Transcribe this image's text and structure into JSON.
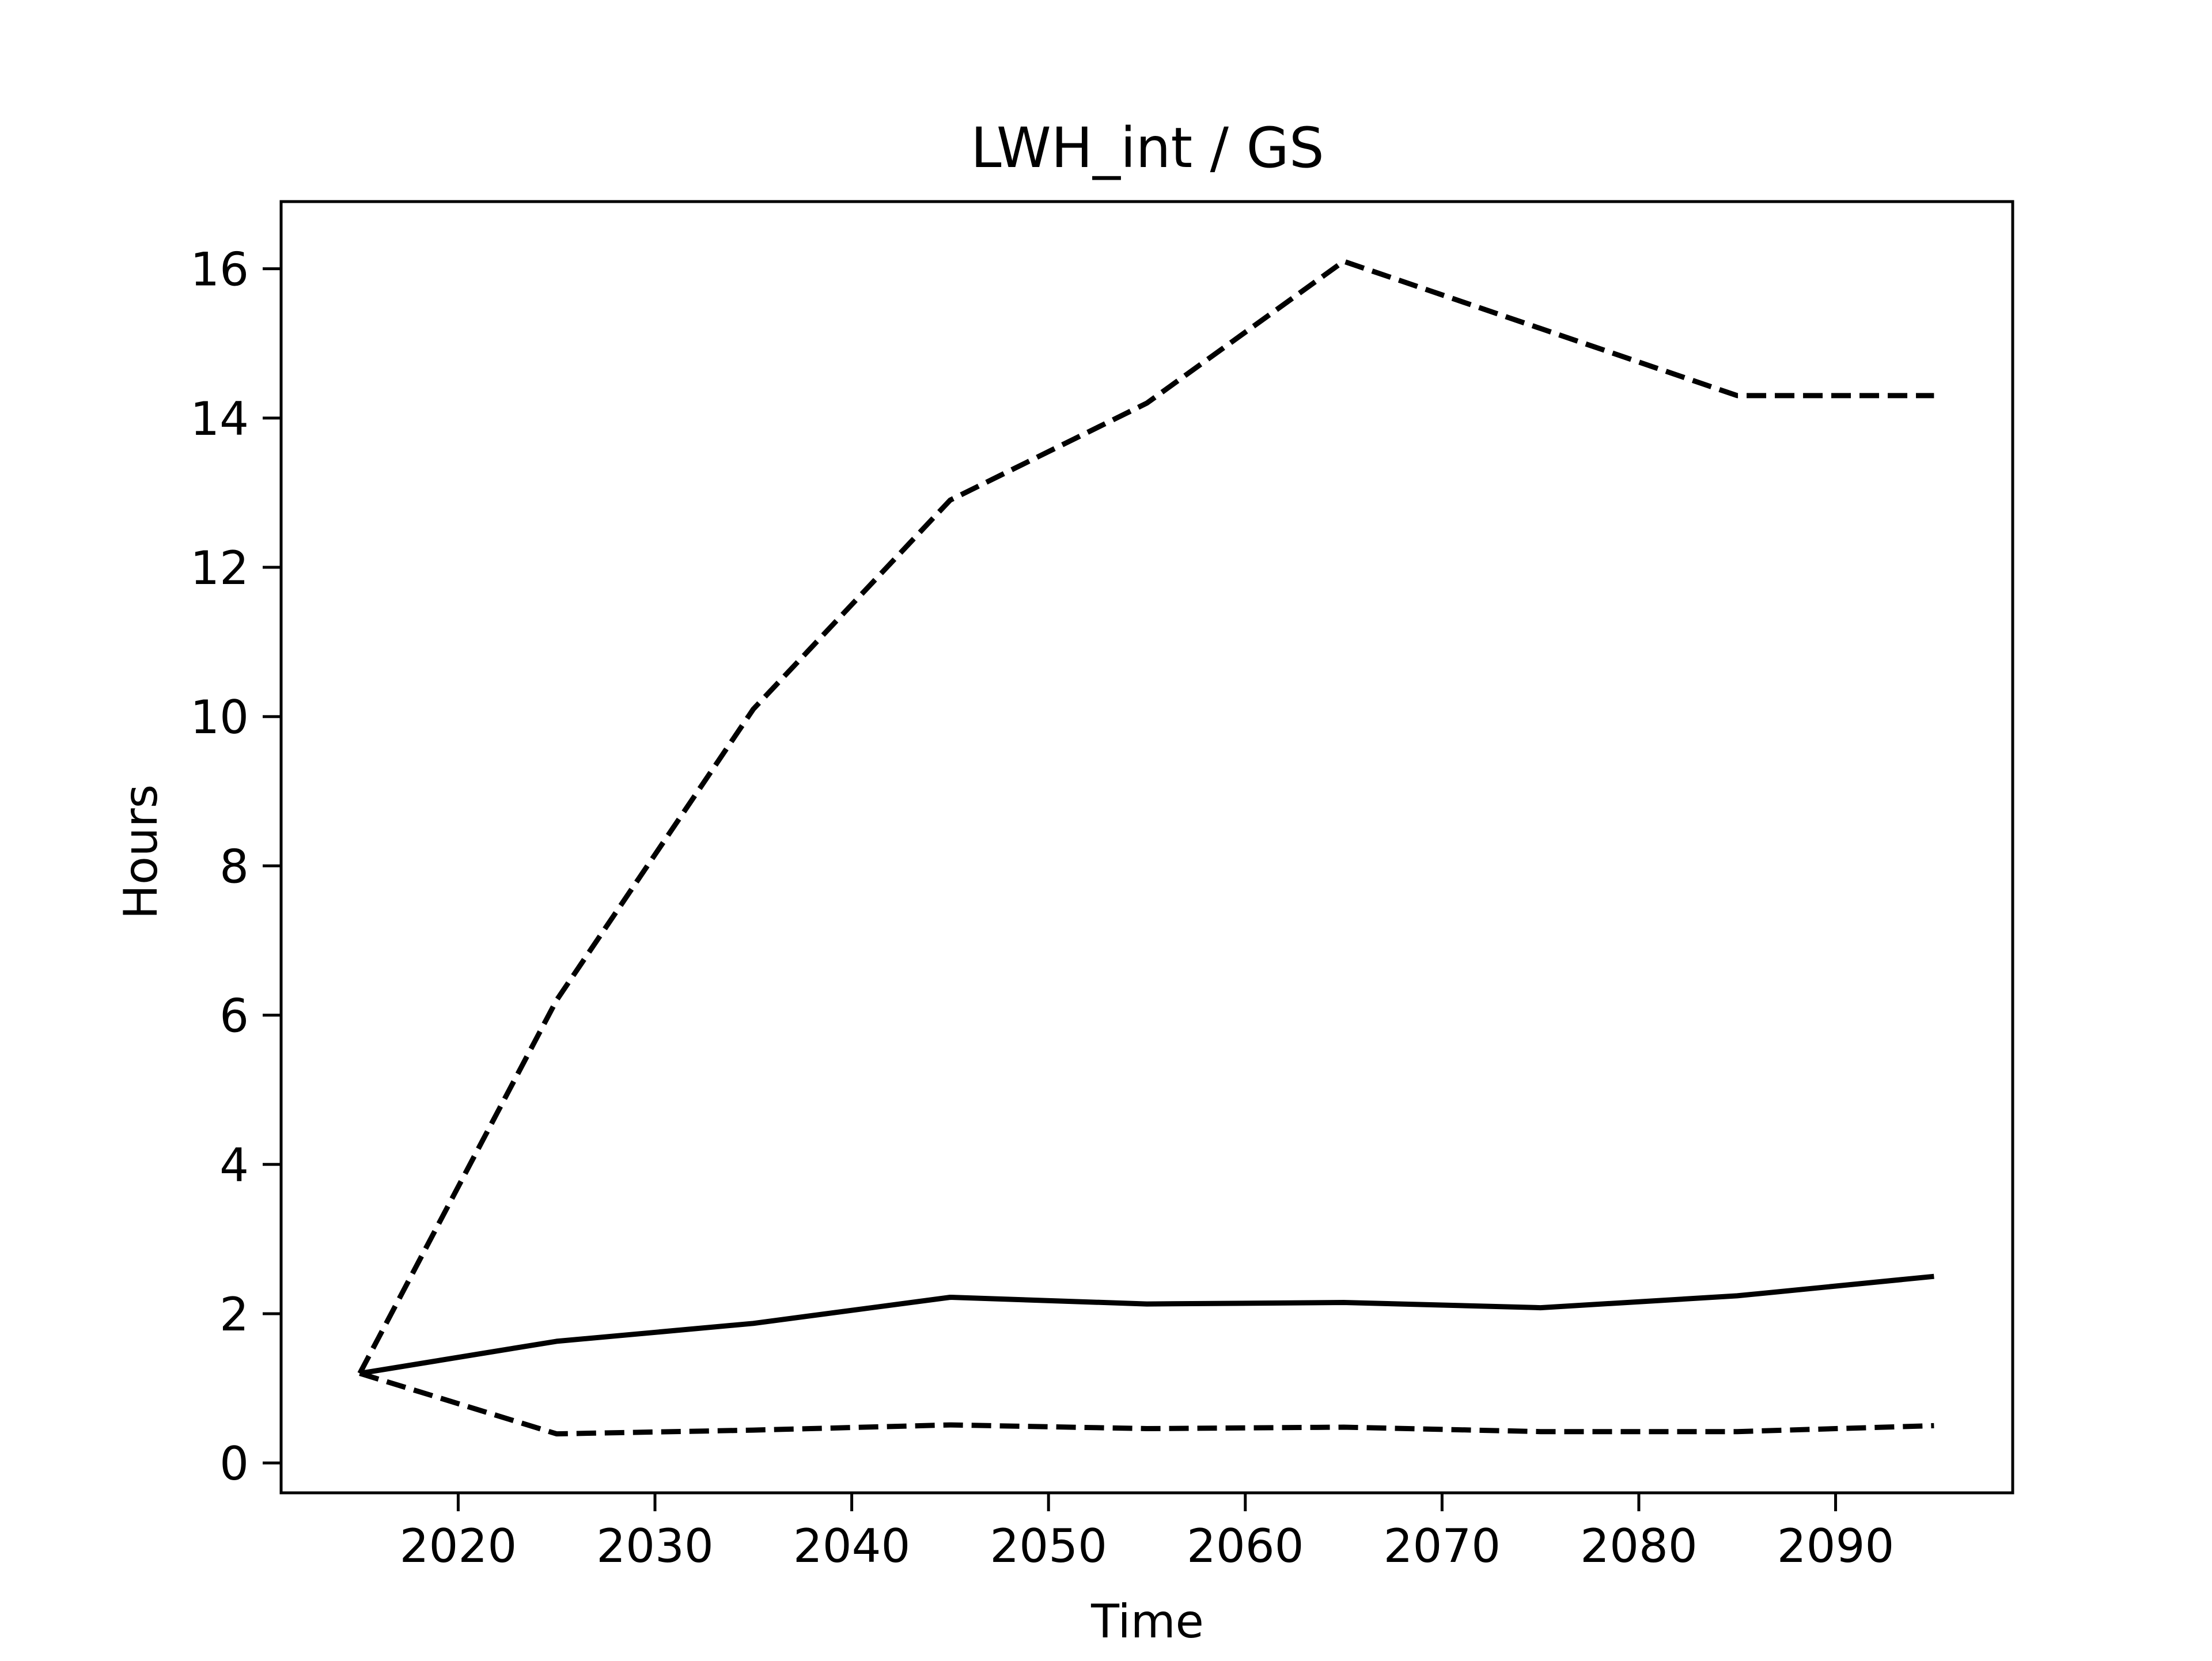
{
  "chart_data": {
    "type": "line",
    "title": "LWH_int / GS",
    "xlabel": "Time",
    "ylabel": "Hours",
    "xlim": [
      2011,
      2099
    ],
    "ylim": [
      -0.4,
      16.9
    ],
    "xticks": [
      2020,
      2030,
      2040,
      2050,
      2060,
      2070,
      2080,
      2090
    ],
    "yticks": [
      0,
      2,
      4,
      6,
      8,
      10,
      12,
      14,
      16
    ],
    "grid": false,
    "legend": "none",
    "x": [
      2015,
      2025,
      2035,
      2045,
      2055,
      2065,
      2075,
      2085,
      2095
    ],
    "series": [
      {
        "style": "dashed",
        "color": "#000000",
        "values": [
          1.2,
          6.2,
          10.1,
          12.9,
          14.2,
          16.1,
          15.2,
          14.3,
          14.3
        ]
      },
      {
        "style": "solid",
        "color": "#000000",
        "values": [
          1.2,
          1.63,
          1.87,
          2.22,
          2.13,
          2.15,
          2.08,
          2.24,
          2.5
        ]
      },
      {
        "style": "dashed",
        "color": "#000000",
        "values": [
          1.2,
          0.39,
          0.44,
          0.51,
          0.46,
          0.48,
          0.42,
          0.42,
          0.5
        ]
      }
    ]
  }
}
